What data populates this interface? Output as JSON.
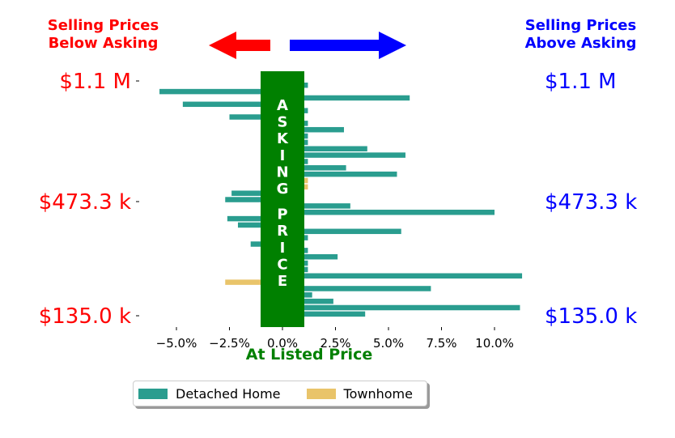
{
  "header": {
    "left_line1": "Selling Prices",
    "left_line2": "Below Asking",
    "right_line1": "Selling Prices",
    "right_line2": "Above Asking"
  },
  "colors": {
    "below": "#ff0000",
    "above": "#0000ff",
    "asking": "#008000",
    "detached": "#2a9d8f",
    "townhome": "#e9c46a"
  },
  "chart_data": {
    "type": "bar",
    "orientation": "horizontal",
    "xlabel": "At Listed Price",
    "xlim": [
      -6.2,
      11.3
    ],
    "xticks": [
      -5.0,
      -2.5,
      0.0,
      2.5,
      5.0,
      7.5,
      10.0
    ],
    "xtick_labels": [
      "−5.0%",
      "−2.5%",
      "0.0%",
      "2.5%",
      "5.0%",
      "7.5%",
      "10.0%"
    ],
    "center_band_label": "ASKING PRICE",
    "left_price_labels": [
      "$1.1 M",
      "$473.3 k",
      "$135.0 k"
    ],
    "right_price_labels": [
      "$1.1 M",
      "$473.3 k",
      "$135.0 k"
    ],
    "legend": [
      "Detached Home",
      "Townhome"
    ],
    "legend_position": "bottom-center",
    "series": [
      {
        "name": "Detached Home",
        "values": [
          1.2,
          -5.8,
          6.0,
          -4.7,
          1.2,
          -2.5,
          1.2,
          2.9,
          1.2,
          1.2,
          4.0,
          5.8,
          1.2,
          3.0,
          5.4,
          null,
          null,
          -2.4,
          -2.7,
          3.2,
          10.0,
          -2.6,
          -2.1,
          5.6,
          1.2,
          -1.5,
          1.2,
          2.6,
          1.2,
          1.2,
          11.3,
          null,
          7.0,
          1.4,
          2.4,
          11.2,
          3.9
        ]
      },
      {
        "name": "Townhome",
        "values": [
          null,
          null,
          null,
          null,
          null,
          null,
          null,
          null,
          null,
          null,
          null,
          null,
          null,
          null,
          null,
          1.2,
          1.2,
          null,
          null,
          null,
          null,
          null,
          null,
          null,
          null,
          null,
          null,
          null,
          null,
          null,
          null,
          -2.7,
          null,
          null,
          null,
          null,
          null
        ]
      }
    ]
  }
}
